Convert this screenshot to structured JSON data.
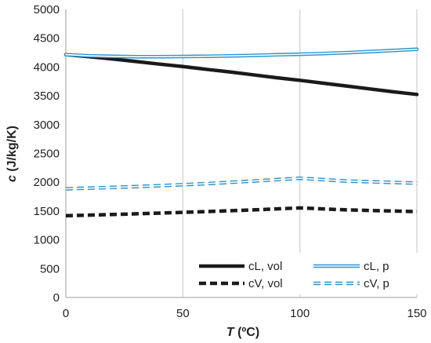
{
  "chart_data": {
    "type": "line",
    "xlabel": {
      "var": "T",
      "unit": " (ºC)"
    },
    "ylabel": {
      "var": "c",
      "unit": " (J/kg/K)"
    },
    "xlim": [
      0,
      150
    ],
    "ylim": [
      0,
      5000
    ],
    "xticks": [
      0,
      50,
      100,
      150
    ],
    "xtick_labels": [
      "0",
      "50",
      "100",
      "150"
    ],
    "yticks": [
      0,
      500,
      1000,
      1500,
      2000,
      2500,
      3000,
      3500,
      4000,
      4500,
      5000
    ],
    "ytick_labels": [
      "0",
      "500",
      "1000",
      "1500",
      "2000",
      "2500",
      "3000",
      "3500",
      "4000",
      "4500",
      "5000"
    ],
    "grid": "vertical",
    "legend": "bottom-right",
    "series": [
      {
        "name": "cL, vol",
        "style": "solid-thick",
        "color": "#1a1a1a",
        "x": [
          0,
          10,
          20,
          30,
          40,
          50,
          60,
          70,
          80,
          90,
          100,
          110,
          120,
          130,
          140,
          150
        ],
        "y": [
          4215,
          4180,
          4140,
          4095,
          4050,
          4010,
          3960,
          3915,
          3865,
          3815,
          3770,
          3720,
          3670,
          3620,
          3570,
          3525
        ]
      },
      {
        "name": "cV, vol",
        "style": "dashed-thick",
        "color": "#1a1a1a",
        "x": [
          0,
          20,
          40,
          60,
          80,
          100,
          120,
          150
        ],
        "y": [
          1420,
          1440,
          1465,
          1490,
          1520,
          1555,
          1520,
          1490
        ]
      },
      {
        "name": "cL, p",
        "style": "double",
        "color": "#2b95cf",
        "x": [
          0,
          10,
          20,
          30,
          40,
          50,
          60,
          70,
          80,
          90,
          100,
          110,
          120,
          130,
          140,
          150
        ],
        "y": [
          4215,
          4195,
          4185,
          4180,
          4180,
          4182,
          4186,
          4193,
          4202,
          4212,
          4222,
          4235,
          4250,
          4268,
          4288,
          4308
        ]
      },
      {
        "name": "cV, p",
        "style": "dashed-double",
        "color": "#2b95cf",
        "x": [
          0,
          20,
          40,
          60,
          80,
          100,
          120,
          150
        ],
        "y": [
          1885,
          1910,
          1940,
          1975,
          2020,
          2070,
          2020,
          1985
        ]
      }
    ]
  }
}
